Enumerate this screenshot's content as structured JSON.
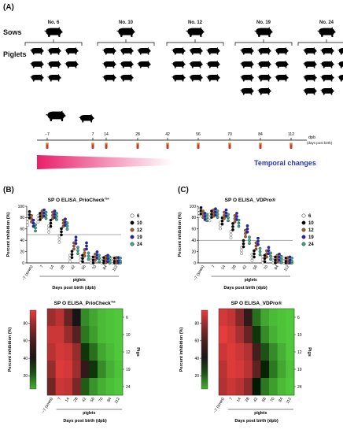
{
  "panels": {
    "a": "(A)",
    "b": "(B)",
    "c": "(C)"
  },
  "section_a": {
    "sows_label": "Sows",
    "piglets_label": "Piglets",
    "sow_numbers": [
      "No. 6",
      "No. 10",
      "No. 12",
      "No. 19",
      "No. 24"
    ],
    "piglet_counts": [
      8,
      8,
      9,
      11,
      11
    ],
    "timeline_ticks": [
      "−7",
      "7",
      "14",
      "28",
      "42",
      "56",
      "70",
      "84",
      "112"
    ],
    "timeline_unit": "dpb",
    "timeline_unit_note": "(days post birth)",
    "temporal_label": "Temporal changes",
    "colors": {
      "gradient_start": "#e8206a",
      "gradient_end": "#ffffff",
      "temporal_text": "#2b34c8"
    }
  },
  "chart_data": [
    {
      "type": "scatter",
      "title": "SP O ELISA_PrioCheck™",
      "ylabel": "Percent inhibition (%)",
      "xlabel": "Days post birth (dpb)",
      "x_group_label": "piglets",
      "categories": [
        "−7 (sows)",
        "7",
        "14",
        "28",
        "42",
        "56",
        "70",
        "84",
        "112"
      ],
      "ylim": [
        0,
        100
      ],
      "yticks": [
        0,
        20,
        40,
        60,
        80,
        100
      ],
      "cutoff": 50,
      "legend_position": "right",
      "series": [
        {
          "name": "6",
          "color": "#ffffff",
          "values": [
            72,
            78,
            60,
            42,
            8,
            6,
            4,
            3,
            3
          ]
        },
        {
          "name": "10",
          "color": "#000000",
          "values": [
            85,
            82,
            70,
            55,
            15,
            8,
            5,
            4,
            3
          ]
        },
        {
          "name": "12",
          "color": "#a85a2a",
          "values": [
            78,
            86,
            84,
            70,
            30,
            18,
            10,
            6,
            4
          ]
        },
        {
          "name": "19",
          "color": "#2020c8",
          "values": [
            70,
            88,
            86,
            72,
            40,
            30,
            14,
            8,
            4
          ]
        },
        {
          "name": "24",
          "color": "#3aa88a",
          "values": [
            62,
            84,
            82,
            65,
            22,
            12,
            8,
            5,
            3
          ]
        }
      ]
    },
    {
      "type": "scatter",
      "title": "SP O ELISA_VDPro®",
      "ylabel": "Percent inhibition (%)",
      "xlabel": "Days post birth (dpb)",
      "x_group_label": "piglets",
      "categories": [
        "−7 (sows)",
        "7",
        "14",
        "28",
        "42",
        "56",
        "70",
        "84",
        "112"
      ],
      "ylim": [
        0,
        100
      ],
      "yticks": [
        0,
        20,
        40,
        60,
        80,
        100
      ],
      "cutoff": 40,
      "legend_position": "right",
      "series": [
        {
          "name": "6",
          "color": "#ffffff",
          "values": [
            88,
            80,
            66,
            50,
            22,
            10,
            6,
            4,
            3
          ]
        },
        {
          "name": "10",
          "color": "#000000",
          "values": [
            92,
            86,
            74,
            64,
            34,
            16,
            8,
            5,
            3
          ]
        },
        {
          "name": "12",
          "color": "#a85a2a",
          "values": [
            86,
            88,
            84,
            78,
            52,
            30,
            16,
            8,
            4
          ]
        },
        {
          "name": "19",
          "color": "#2020c8",
          "values": [
            82,
            90,
            88,
            82,
            60,
            38,
            22,
            10,
            5
          ]
        },
        {
          "name": "24",
          "color": "#3aa88a",
          "values": [
            80,
            86,
            80,
            70,
            40,
            20,
            12,
            6,
            3
          ]
        }
      ]
    },
    {
      "type": "heatmap",
      "title": "SP O ELISA_PrioCheck™",
      "xlabel": "Days post birth (dpb)",
      "x_group_label": "piglets",
      "ylabel_right": "Pigs",
      "colorbar_label": "Percent inhibition (%)",
      "colorbar_ticks": [
        20,
        40,
        60,
        80
      ],
      "categories": [
        "−7 (sows)",
        "7",
        "14",
        "28",
        "42",
        "56",
        "70",
        "84",
        "112"
      ],
      "rows": [
        "6",
        "10",
        "12",
        "19",
        "24"
      ],
      "values": [
        [
          74,
          80,
          62,
          44,
          18,
          12,
          8,
          6,
          5
        ],
        [
          84,
          84,
          72,
          58,
          22,
          14,
          8,
          6,
          5
        ],
        [
          80,
          86,
          84,
          72,
          36,
          24,
          12,
          8,
          5
        ],
        [
          72,
          88,
          86,
          74,
          50,
          36,
          18,
          10,
          6
        ],
        [
          64,
          84,
          82,
          66,
          28,
          16,
          10,
          7,
          5
        ]
      ]
    },
    {
      "type": "heatmap",
      "title": "SP O ELISA_VDPro®",
      "xlabel": "Days post birth (dpb)",
      "x_group_label": "piglets",
      "ylabel_right": "Pigs",
      "colorbar_label": "Percent inhibition (%)",
      "colorbar_ticks": [
        20,
        40,
        60,
        80
      ],
      "categories": [
        "−7 (sows)",
        "7",
        "14",
        "28",
        "42",
        "56",
        "70",
        "84",
        "112"
      ],
      "rows": [
        "6",
        "10",
        "12",
        "19",
        "24"
      ],
      "values": [
        [
          86,
          82,
          68,
          50,
          24,
          12,
          8,
          6,
          4
        ],
        [
          90,
          86,
          76,
          62,
          36,
          18,
          10,
          6,
          4
        ],
        [
          84,
          88,
          84,
          78,
          54,
          30,
          18,
          10,
          5
        ],
        [
          80,
          88,
          86,
          80,
          60,
          40,
          22,
          12,
          6
        ],
        [
          78,
          84,
          80,
          70,
          42,
          22,
          14,
          8,
          4
        ]
      ]
    }
  ]
}
